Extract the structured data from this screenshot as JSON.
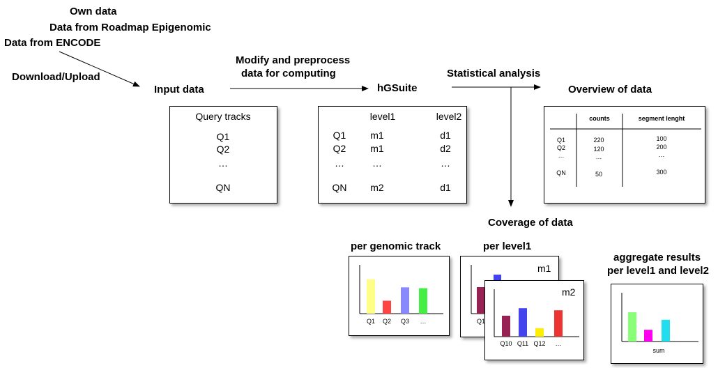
{
  "sources": {
    "own_data": "Own data",
    "roadmap": "Data from Roadmap Epigenomic",
    "encode": "Data from ENCODE",
    "download_upload": "Download/Upload"
  },
  "steps": {
    "input_data": "Input data",
    "modify_line1": "Modify and preprocess",
    "modify_line2": "data for computing",
    "hgsuite": "hGSuite",
    "statistical_analysis": "Statistical analysis",
    "overview": "Overview of data",
    "coverage": "Coverage of data"
  },
  "input_table": {
    "header": "Query tracks",
    "rows": [
      "Q1",
      "Q2",
      "…",
      "QN"
    ]
  },
  "hgsuite_table": {
    "headers": [
      "level1",
      "level2"
    ],
    "rows": [
      [
        "Q1",
        "m1",
        "d1"
      ],
      [
        "Q2",
        "m1",
        "d2"
      ],
      [
        "…",
        "…",
        "…"
      ],
      [
        "QN",
        "m2",
        "d1"
      ]
    ]
  },
  "overview_table": {
    "headers": [
      "counts",
      "segment lenght"
    ],
    "rows": [
      [
        "Q1",
        "220",
        "100"
      ],
      [
        "Q2",
        "120",
        "200"
      ],
      [
        "…",
        "…",
        "…"
      ],
      [
        "QN",
        "50",
        "300"
      ]
    ]
  },
  "coverage_charts": {
    "per_track": {
      "title": "per genomic track",
      "categories": [
        "Q1",
        "Q2",
        "Q3",
        "…"
      ],
      "values": [
        0.85,
        0.32,
        0.65,
        0.63
      ],
      "colors": [
        "#ffff88",
        "#ff4444",
        "#8888ff",
        "#44ee44"
      ]
    },
    "per_level1": {
      "title": "per level1",
      "back_label": "m1",
      "back_first_category": "Q1",
      "front_label": "m2",
      "categories": [
        "Q10",
        "Q11",
        "Q12",
        "…"
      ],
      "values": [
        0.5,
        0.68,
        0.2,
        0.63
      ],
      "colors": [
        "#992255",
        "#4444ee",
        "#ffee00",
        "#ee3333"
      ]
    },
    "aggregate": {
      "title_line1": "aggregate results",
      "title_line2": "per level1 and level2",
      "xlabel": "sum",
      "values": [
        0.7,
        0.28,
        0.52
      ],
      "colors": [
        "#88ff77",
        "#ff00ee",
        "#22ddee"
      ]
    }
  }
}
